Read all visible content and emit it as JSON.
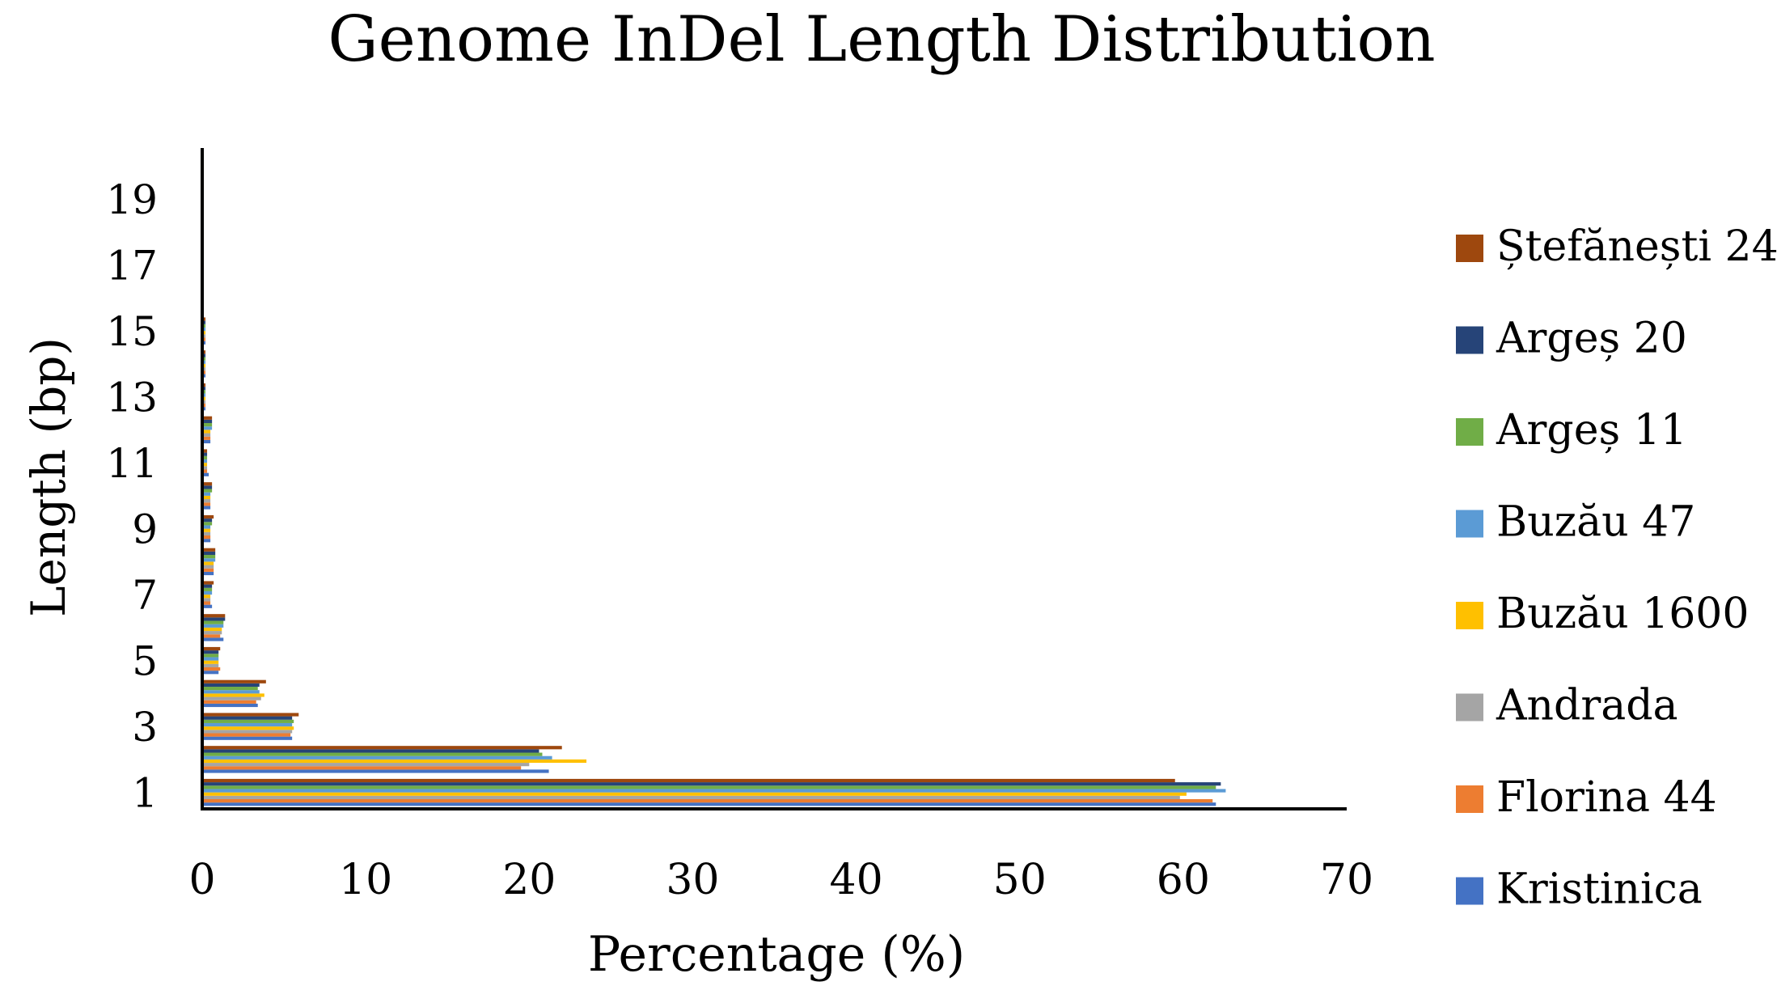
{
  "chart_data": {
    "type": "bar",
    "orientation": "horizontal",
    "title": "Genome InDel Length Distribution",
    "xlabel": "Percentage (%)",
    "ylabel": "Length (bp)",
    "xlim": [
      0,
      70
    ],
    "x_ticks": [
      "0",
      "10",
      "20",
      "30",
      "40",
      "50",
      "60",
      "70"
    ],
    "y_tick_labels": [
      "1",
      "3",
      "5",
      "7",
      "9",
      "11",
      "13",
      "15",
      "17",
      "19"
    ],
    "categories": [
      1,
      2,
      3,
      4,
      5,
      6,
      7,
      8,
      9,
      10,
      11,
      12,
      13,
      14,
      15,
      16,
      17,
      18,
      19,
      20
    ],
    "grid": false,
    "legend_position": "right",
    "series": [
      {
        "name": "Kristinica",
        "color": "#4472C4",
        "values": [
          62.0,
          21.2,
          5.5,
          3.4,
          1.0,
          1.3,
          0.6,
          0.7,
          0.5,
          0.5,
          0.4,
          0.5,
          0.2,
          0.2,
          0.2,
          0.1,
          0.1,
          0.1,
          0.1,
          0.1
        ]
      },
      {
        "name": "Florina 44",
        "color": "#ED7D31",
        "values": [
          61.8,
          19.5,
          5.4,
          3.3,
          1.1,
          1.1,
          0.5,
          0.7,
          0.5,
          0.5,
          0.3,
          0.5,
          0.2,
          0.2,
          0.2,
          0.1,
          0.1,
          0.1,
          0.1,
          0.1
        ]
      },
      {
        "name": "Andrada",
        "color": "#A5A5A5",
        "values": [
          59.8,
          20.0,
          5.5,
          3.6,
          1.0,
          1.2,
          0.5,
          0.7,
          0.5,
          0.5,
          0.3,
          0.5,
          0.2,
          0.2,
          0.2,
          0.1,
          0.1,
          0.1,
          0.1,
          0.1
        ]
      },
      {
        "name": "Buzău 1600",
        "color": "#FFC000",
        "values": [
          60.2,
          23.5,
          5.6,
          3.8,
          1.0,
          1.2,
          0.5,
          0.7,
          0.5,
          0.5,
          0.3,
          0.5,
          0.2,
          0.2,
          0.2,
          0.1,
          0.1,
          0.1,
          0.1,
          0.1
        ]
      },
      {
        "name": "Buzău 47",
        "color": "#5B9BD5",
        "values": [
          62.6,
          21.4,
          5.5,
          3.5,
          1.0,
          1.3,
          0.6,
          0.8,
          0.5,
          0.5,
          0.3,
          0.6,
          0.2,
          0.2,
          0.2,
          0.1,
          0.1,
          0.1,
          0.1,
          0.1
        ]
      },
      {
        "name": "Argeș 11",
        "color": "#70AD47",
        "values": [
          62.0,
          20.8,
          5.6,
          3.4,
          1.0,
          1.3,
          0.6,
          0.8,
          0.6,
          0.6,
          0.3,
          0.6,
          0.2,
          0.2,
          0.2,
          0.1,
          0.1,
          0.1,
          0.1,
          0.1
        ]
      },
      {
        "name": "Argeș 20",
        "color": "#264478",
        "values": [
          62.3,
          20.6,
          5.5,
          3.5,
          1.0,
          1.4,
          0.6,
          0.8,
          0.6,
          0.6,
          0.3,
          0.6,
          0.2,
          0.2,
          0.2,
          0.1,
          0.1,
          0.1,
          0.1,
          0.1
        ]
      },
      {
        "name": "Ștefănești 24",
        "color": "#9E480E",
        "values": [
          59.5,
          22.0,
          5.9,
          3.9,
          1.1,
          1.4,
          0.7,
          0.8,
          0.7,
          0.6,
          0.3,
          0.6,
          0.2,
          0.2,
          0.2,
          0.1,
          0.1,
          0.1,
          0.1,
          0.1
        ]
      }
    ]
  }
}
